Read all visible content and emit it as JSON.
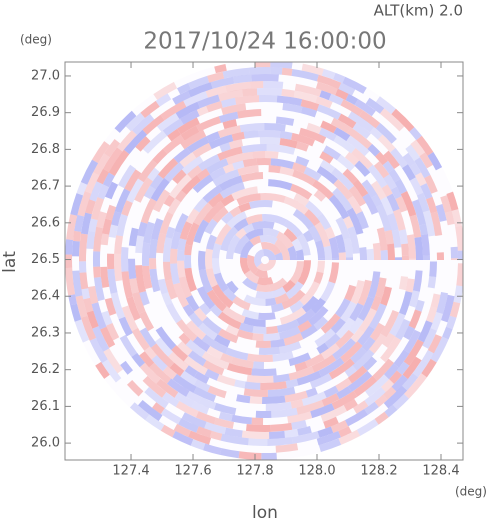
{
  "chart_data": {
    "type": "ppi",
    "title": "2017/10/24 16:00:00",
    "annotation": "ALT(km) 2.0",
    "xlabel": "lon",
    "ylabel": "lat",
    "x_unit": "(deg)",
    "y_unit": "(deg)",
    "xlim": [
      127.187,
      128.471
    ],
    "ylim": [
      25.954,
      27.038
    ],
    "xticks": [
      127.4,
      127.6,
      127.8,
      {
        "value": 128,
        "label": "128.0"
      },
      128.2,
      128.4
    ],
    "yticks": [
      {
        "value": 26,
        "label": "26.0"
      },
      26.1,
      26.2,
      26.3,
      26.4,
      26.5,
      26.6,
      26.7,
      26.8,
      26.9,
      {
        "value": 27,
        "label": "27.0"
      }
    ]
  }
}
